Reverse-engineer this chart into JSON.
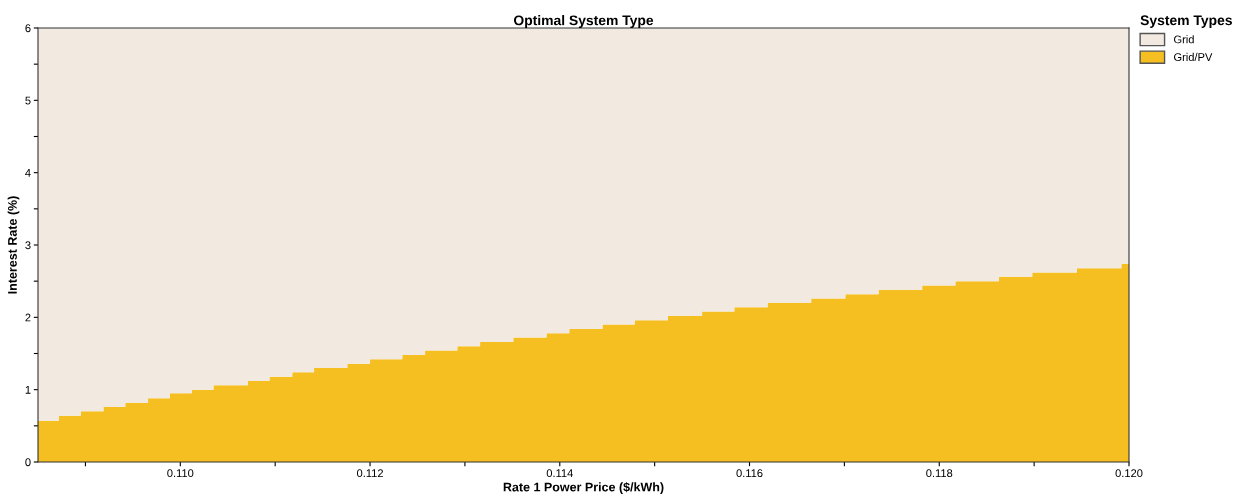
{
  "chart_data": {
    "type": "area",
    "title": "Optimal System Type",
    "xlabel": "Rate 1 Power Price ($/kWh)",
    "ylabel": "Interest Rate (%)",
    "legend_title": "System Types",
    "stacked": true,
    "x": [
      0.1085,
      0.10872,
      0.10872,
      0.10895,
      0.10895,
      0.10919,
      0.10919,
      0.10942,
      0.10942,
      0.10966,
      0.10966,
      0.10989,
      0.10989,
      0.11012,
      0.11012,
      0.11035,
      0.11035,
      0.11071,
      0.11071,
      0.11094,
      0.11094,
      0.11118,
      0.11118,
      0.11141,
      0.11141,
      0.11176,
      0.11176,
      0.112,
      0.112,
      0.11234,
      0.11234,
      0.11258,
      0.11258,
      0.11292,
      0.11292,
      0.11316,
      0.11316,
      0.11351,
      0.11351,
      0.11386,
      0.11386,
      0.1141,
      0.1141,
      0.11445,
      0.11445,
      0.11479,
      0.11479,
      0.11514,
      0.11514,
      0.1155,
      0.1155,
      0.11584,
      0.11584,
      0.11619,
      0.11619,
      0.11665,
      0.11665,
      0.11701,
      0.11701,
      0.11736,
      0.11736,
      0.11782,
      0.11782,
      0.11817,
      0.11817,
      0.11863,
      0.11863,
      0.11898,
      0.11898,
      0.11945,
      0.11945,
      0.11992,
      0.11992,
      0.12
    ],
    "series": [
      {
        "name": "Grid/PV",
        "color": "#f6bf21",
        "values": [
          0.57,
          0.57,
          0.64,
          0.64,
          0.7,
          0.7,
          0.76,
          0.76,
          0.82,
          0.82,
          0.88,
          0.88,
          0.95,
          0.95,
          1.0,
          1.0,
          1.06,
          1.06,
          1.12,
          1.12,
          1.18,
          1.18,
          1.24,
          1.24,
          1.3,
          1.3,
          1.36,
          1.36,
          1.42,
          1.42,
          1.48,
          1.48,
          1.54,
          1.54,
          1.6,
          1.6,
          1.66,
          1.66,
          1.72,
          1.72,
          1.78,
          1.78,
          1.84,
          1.84,
          1.9,
          1.9,
          1.96,
          1.96,
          2.02,
          2.02,
          2.08,
          2.08,
          2.14,
          2.14,
          2.2,
          2.2,
          2.26,
          2.26,
          2.32,
          2.32,
          2.38,
          2.38,
          2.44,
          2.44,
          2.5,
          2.5,
          2.56,
          2.56,
          2.62,
          2.62,
          2.68,
          2.68,
          2.74,
          2.74
        ]
      },
      {
        "name": "Grid",
        "color": "#f2eae0",
        "values": [
          5.43,
          5.43,
          5.36,
          5.36,
          5.3,
          5.3,
          5.24,
          5.24,
          5.18,
          5.18,
          5.12,
          5.12,
          5.05,
          5.05,
          5.0,
          5.0,
          4.94,
          4.94,
          4.88,
          4.88,
          4.82,
          4.82,
          4.76,
          4.76,
          4.7,
          4.7,
          4.64,
          4.64,
          4.58,
          4.58,
          4.52,
          4.52,
          4.46,
          4.46,
          4.4,
          4.4,
          4.34,
          4.34,
          4.28,
          4.28,
          4.22,
          4.22,
          4.16,
          4.16,
          4.1,
          4.1,
          4.04,
          4.04,
          3.98,
          3.98,
          3.92,
          3.92,
          3.86,
          3.86,
          3.8,
          3.8,
          3.74,
          3.74,
          3.68,
          3.68,
          3.62,
          3.62,
          3.56,
          3.56,
          3.5,
          3.5,
          3.44,
          3.44,
          3.38,
          3.38,
          3.32,
          3.32,
          3.26,
          3.26
        ]
      }
    ],
    "xlim": [
      0.1085,
      0.12
    ],
    "xticks": [
      {
        "value": 0.109,
        "label": null
      },
      {
        "value": 0.11,
        "label": "0.110"
      },
      {
        "value": 0.111,
        "label": null
      },
      {
        "value": 0.112,
        "label": "0.112"
      },
      {
        "value": 0.113,
        "label": null
      },
      {
        "value": 0.114,
        "label": "0.114"
      },
      {
        "value": 0.115,
        "label": null
      },
      {
        "value": 0.116,
        "label": "0.116"
      },
      {
        "value": 0.117,
        "label": null
      },
      {
        "value": 0.118,
        "label": "0.118"
      },
      {
        "value": 0.119,
        "label": null
      },
      {
        "value": 0.12,
        "label": "0.120"
      }
    ],
    "ylim": [
      0,
      6
    ],
    "yticks": [
      0,
      {
        "value": 0.5,
        "label": null
      },
      1,
      {
        "value": 1.5,
        "label": null
      },
      2,
      {
        "value": 2.5,
        "label": null
      },
      3,
      {
        "value": 3.5,
        "label": null
      },
      4,
      {
        "value": 4.5,
        "label": null
      },
      5,
      {
        "value": 5.5,
        "label": null
      },
      6
    ],
    "grid": false,
    "legend": "top right"
  }
}
